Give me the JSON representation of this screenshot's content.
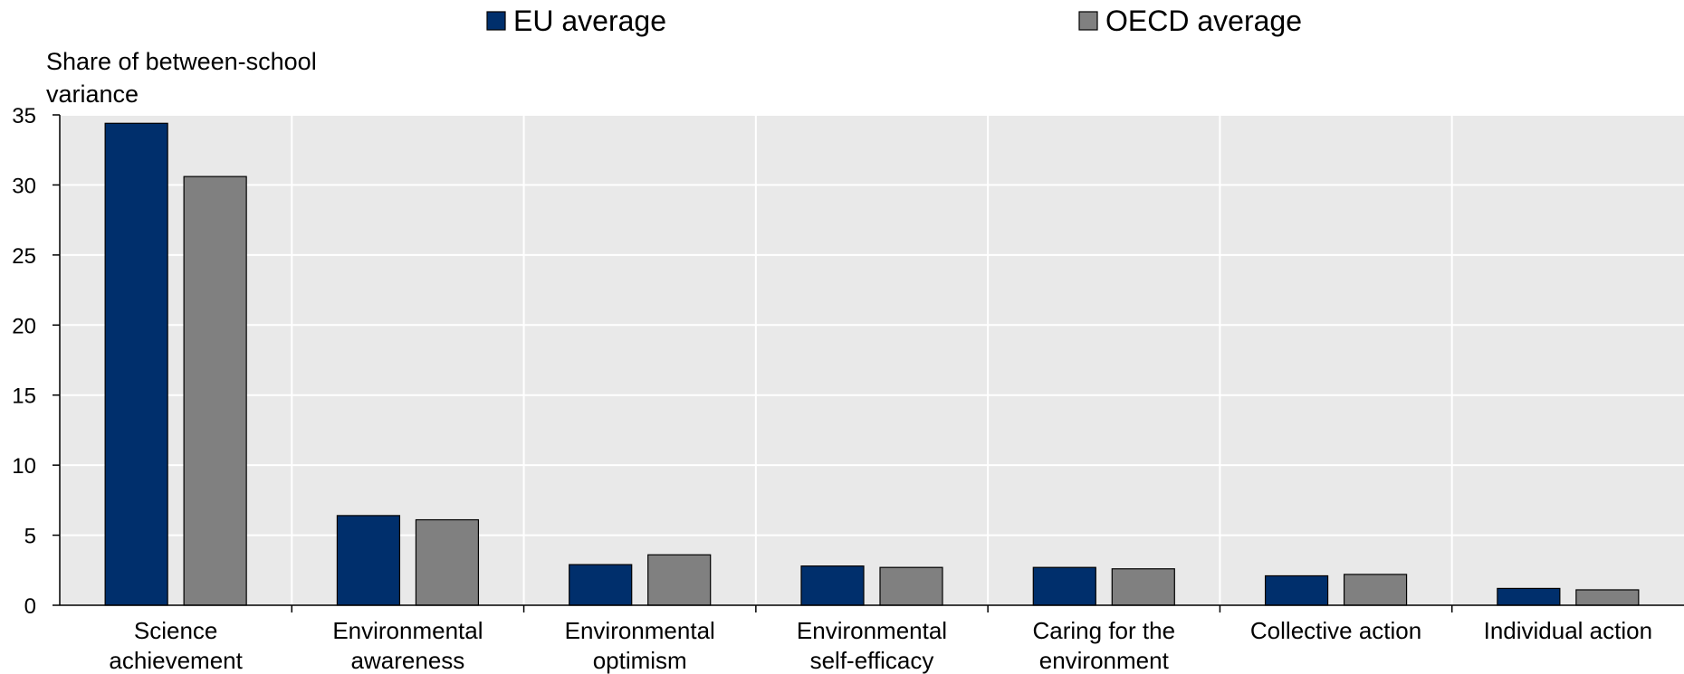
{
  "chart_data": {
    "type": "bar",
    "title": "",
    "ylabel": "Share of between-school variance",
    "xlabel": "",
    "ylim": [
      0,
      35
    ],
    "yticks": [
      0,
      5,
      10,
      15,
      20,
      25,
      30,
      35
    ],
    "grid": "horizontal",
    "legend_position": "top",
    "categories": [
      "Science achievement",
      "Environmental awareness",
      "Environmental optimism",
      "Environmental self-efficacy",
      "Caring for the environment",
      "Collective action",
      "Individual action"
    ],
    "series": [
      {
        "name": "EU average",
        "color": "#002F6C",
        "values": [
          34.4,
          6.4,
          2.9,
          2.8,
          2.7,
          2.1,
          1.2
        ]
      },
      {
        "name": "OECD average",
        "color": "#808080",
        "values": [
          30.6,
          6.1,
          3.6,
          2.7,
          2.6,
          2.2,
          1.1
        ]
      }
    ],
    "colors": {
      "plot_background": "#E9E9E9",
      "gridline": "#FFFFFF",
      "axis": "#000000"
    }
  }
}
